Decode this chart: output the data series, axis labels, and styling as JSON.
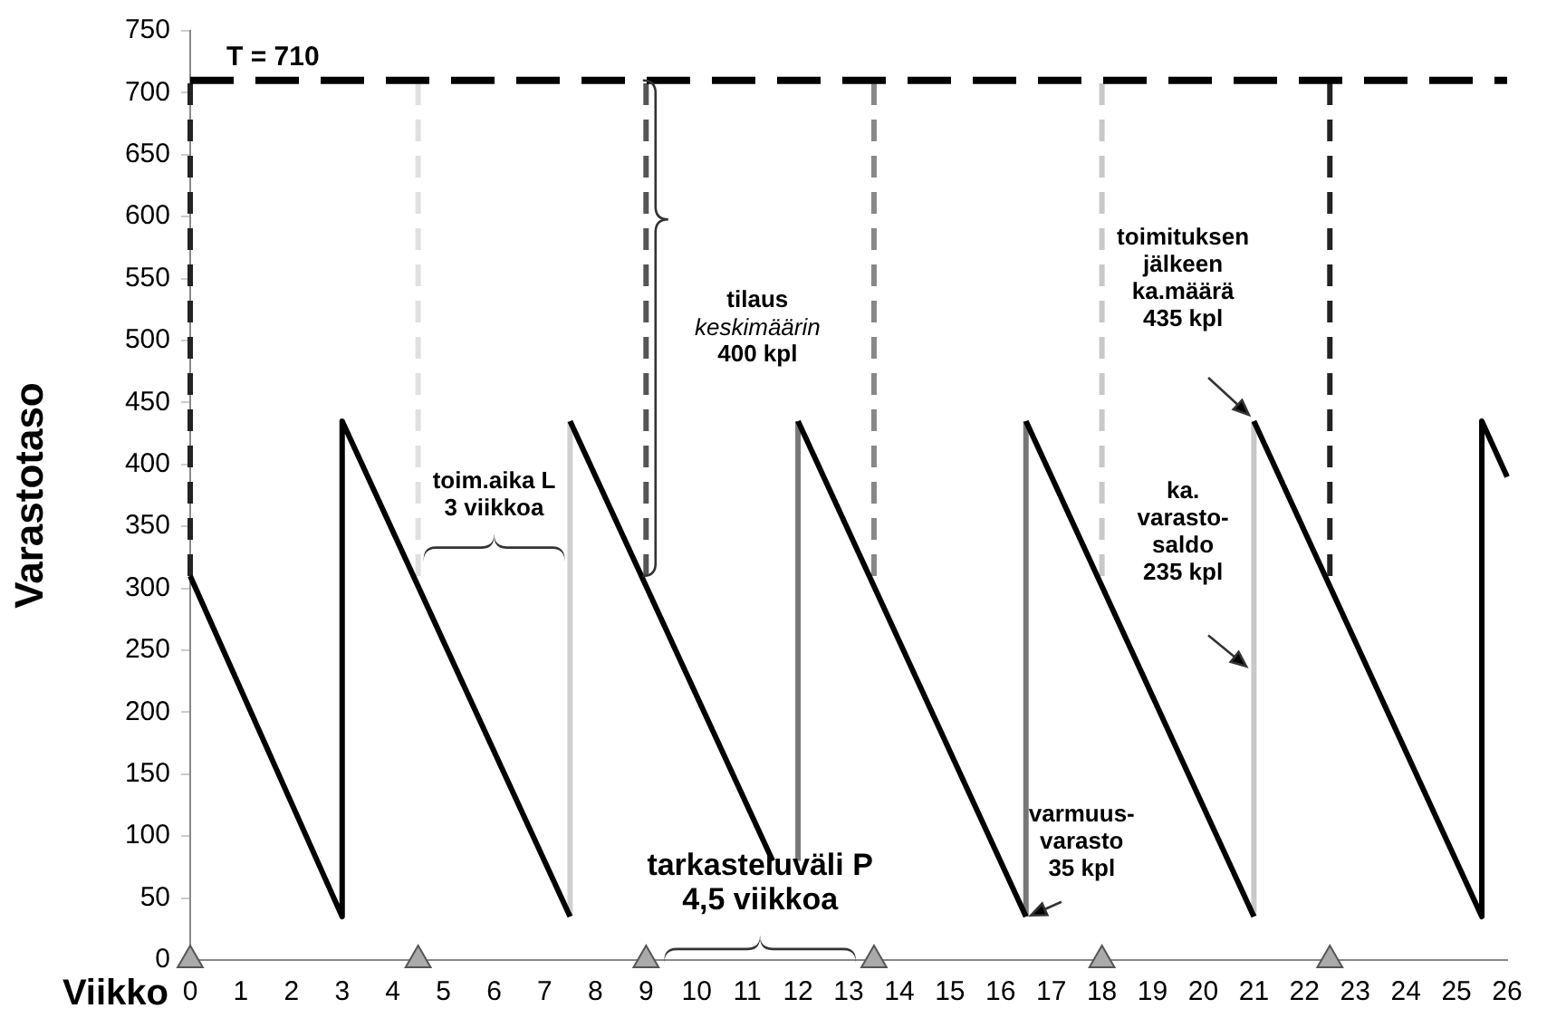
{
  "chart_data": {
    "type": "line",
    "xlabel": "Viikko",
    "ylabel": "Varastotaso",
    "xlim": [
      0,
      26
    ],
    "xticks": [
      0,
      1,
      2,
      3,
      4,
      5,
      6,
      7,
      8,
      9,
      10,
      11,
      12,
      13,
      14,
      15,
      16,
      17,
      18,
      19,
      20,
      21,
      22,
      23,
      24,
      25,
      26
    ],
    "ylim": [
      0,
      750
    ],
    "yticks": [
      0,
      50,
      100,
      150,
      200,
      250,
      300,
      350,
      400,
      450,
      500,
      550,
      600,
      650,
      700,
      750
    ],
    "grid": false,
    "legend": false,
    "marker": "none",
    "line_style": "solid",
    "series": [
      {
        "color": "#000000",
        "x": [
          0,
          3,
          3,
          7.5
        ],
        "values": [
          310,
          35,
          435,
          35
        ]
      },
      {
        "color": "#000000",
        "x": [
          7.5,
          11.5
        ],
        "values": [
          435,
          80
        ]
      },
      {
        "color": "#000000",
        "x": [
          12,
          16.5
        ],
        "values": [
          435,
          35
        ]
      },
      {
        "color": "#000000",
        "x": [
          16.5,
          21
        ],
        "values": [
          435,
          35
        ]
      },
      {
        "color": "#000000",
        "x": [
          21,
          25.5,
          25.5,
          26
        ],
        "values": [
          435,
          35,
          435,
          390
        ]
      },
      {
        "color": "#d0d0d0",
        "x": [
          7.5,
          7.5
        ],
        "values": [
          35,
          435
        ]
      },
      {
        "color": "#777777",
        "x": [
          12,
          12
        ],
        "values": [
          80,
          435
        ]
      },
      {
        "color": "#777777",
        "x": [
          16.5,
          16.5
        ],
        "values": [
          35,
          435
        ]
      },
      {
        "color": "#c8c8c8",
        "x": [
          21,
          21
        ],
        "values": [
          35,
          435
        ]
      },
      {
        "color": "#222222",
        "line_style": "dashed",
        "x": [
          0,
          0
        ],
        "values": [
          310,
          710
        ]
      },
      {
        "color": "#e0e0e0",
        "line_style": "dashed",
        "x": [
          4.5,
          4.5
        ],
        "values": [
          310,
          710
        ]
      },
      {
        "color": "#555555",
        "line_style": "dashed",
        "x": [
          9,
          9
        ],
        "values": [
          310,
          710
        ]
      },
      {
        "color": "#888888",
        "line_style": "dashed",
        "x": [
          13.5,
          13.5
        ],
        "values": [
          310,
          710
        ]
      },
      {
        "color": "#c8c8c8",
        "line_style": "dashed",
        "x": [
          18,
          18
        ],
        "values": [
          310,
          710
        ]
      },
      {
        "color": "#222222",
        "line_style": "dashed",
        "x": [
          22.5,
          22.5
        ],
        "values": [
          310,
          710
        ]
      },
      {
        "type": "scatter",
        "marker": "triangle",
        "color": "#aaaaaa",
        "x": [
          0,
          4.5,
          9,
          13.5,
          18,
          22.5
        ],
        "values": [
          0,
          0,
          0,
          0,
          0,
          0
        ]
      }
    ],
    "ref_lines": [
      {
        "axis": "y",
        "value": 710,
        "label": "T = 710",
        "color": "#000000",
        "line_style": "dashed"
      }
    ],
    "annotations": [
      "toim.aika L\n3 viikkoa",
      "tilaus\nkeskimäärin\n400 kpl",
      "toimituksen\njälkeen\nka.määrä\n435 kpl",
      "ka.\nvarasto-\nsaldo\n235 kpl",
      "varmuus-\nvarasto\n35 kpl",
      "tarkasteluväli P\n4,5 viikkoa"
    ]
  }
}
